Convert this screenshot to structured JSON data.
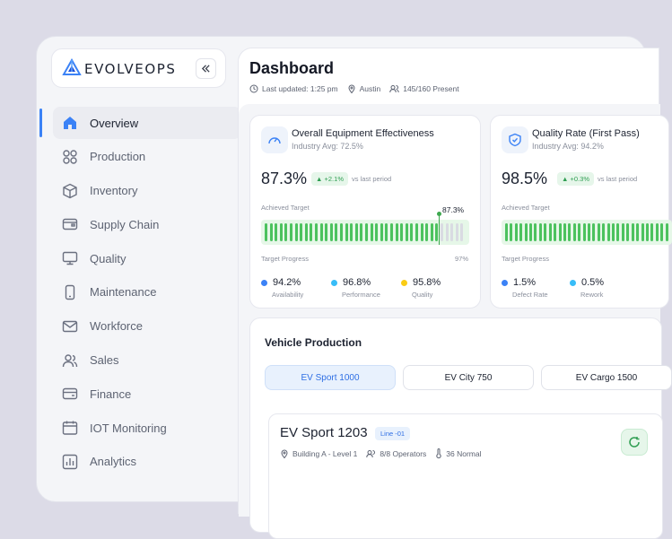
{
  "brand": {
    "name": "EVOLVEOPS",
    "accent": "#3b82f6"
  },
  "sidebar": {
    "items": [
      {
        "label": "Overview",
        "icon": "home-icon",
        "active": true
      },
      {
        "label": "Production",
        "icon": "grid-icon"
      },
      {
        "label": "Inventory",
        "icon": "box-icon"
      },
      {
        "label": "Supply Chain",
        "icon": "wallet-icon"
      },
      {
        "label": "Quality",
        "icon": "monitor-icon"
      },
      {
        "label": "Maintenance",
        "icon": "phone-icon"
      },
      {
        "label": "Workforce",
        "icon": "mail-icon"
      },
      {
        "label": "Sales",
        "icon": "users-icon"
      },
      {
        "label": "Finance",
        "icon": "card-icon"
      },
      {
        "label": "IOT Monitoring",
        "icon": "calendar-icon"
      },
      {
        "label": "Analytics",
        "icon": "chart-icon"
      }
    ]
  },
  "header": {
    "title": "Dashboard",
    "last_updated": "Last updated: 1:25 pm",
    "location": "Austin",
    "present": "145/160 Present"
  },
  "oee": {
    "title": "Overall Equipment Effectiveness",
    "industry_avg": "Industry Avg: 72.5%",
    "value": "87.3%",
    "delta": "▲ +2.1%",
    "vs": "vs last period",
    "achieved_label": "Achieved Target",
    "achieved_value": "87.3%",
    "progress_fraction": 0.873,
    "target_label": "Target Progress",
    "target_value": "97%",
    "metrics": [
      {
        "value": "94.2%",
        "label": "Availability",
        "color": "#3b82f6"
      },
      {
        "value": "96.8%",
        "label": "Performance",
        "color": "#38bdf8"
      },
      {
        "value": "95.8%",
        "label": "Quality",
        "color": "#facc15"
      }
    ]
  },
  "quality_rate": {
    "title": "Quality Rate (First Pass)",
    "industry_avg": "Industry Avg: 94.2%",
    "value": "98.5%",
    "delta": "▲ +0.3%",
    "vs": "vs last period",
    "achieved_label": "Achieved Target",
    "progress_fraction": 1.0,
    "target_label": "Target Progress",
    "metrics": [
      {
        "value": "1.5%",
        "label": "Defect Rate",
        "color": "#3b82f6"
      },
      {
        "value": "0.5%",
        "label": "Rework",
        "color": "#38bdf8"
      }
    ]
  },
  "vehicle_production": {
    "title": "Vehicle Production",
    "tabs": [
      {
        "label": "EV Sport 1000",
        "active": true
      },
      {
        "label": "EV City 750"
      },
      {
        "label": "EV Cargo 1500"
      }
    ],
    "detail": {
      "title": "EV Sport 1203",
      "line": "Line -01",
      "location": "Building A - Level 1",
      "operators": "8/8 Operators",
      "temperature": "36 Normal"
    }
  }
}
